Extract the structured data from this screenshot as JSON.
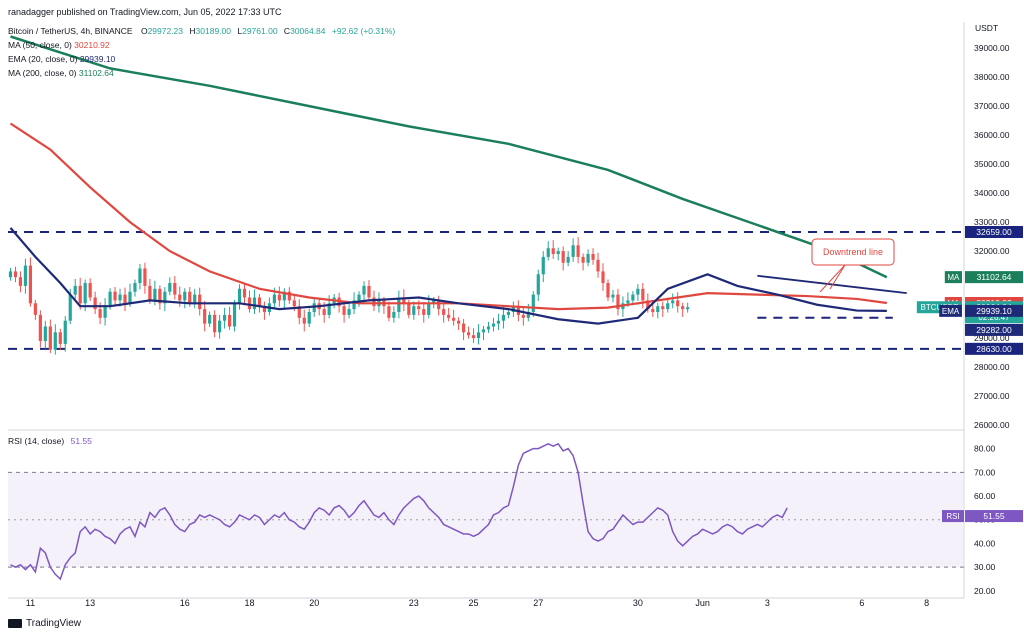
{
  "header": {
    "publish_line": "ranadagger published on TradingView.com, Jun 05, 2022 17:33 UTC",
    "symbol": "Bitcoin / TetherUS, 4h, BINANCE",
    "ohlc": [
      {
        "k": "O",
        "v": "29972.23"
      },
      {
        "k": "H",
        "v": "30189.00"
      },
      {
        "k": "L",
        "v": "29761.00"
      },
      {
        "k": "C",
        "v": "30064.84"
      },
      {
        "k": "chg",
        "v": "+92.62 (+0.31%)"
      }
    ],
    "indicators": [
      {
        "label": "MA (50, close, 0)",
        "value": "30210.92",
        "color": "#f23645"
      },
      {
        "label": "EMA (20, close, 0)",
        "value": "29939.10",
        "color": "#1e2a78"
      },
      {
        "label": "MA (200, close, 0)",
        "value": "31102.64",
        "color": "#1b7f5b"
      }
    ]
  },
  "rsi_header": {
    "label": "RSI (14, close)",
    "value": "51.55"
  },
  "footer": {
    "brand": "TradingView"
  },
  "colors": {
    "up": "#26a69a",
    "down": "#ef5350",
    "ma50": "#e0473f",
    "ema20": "#1e2a78",
    "ma200": "#1b7f5b",
    "rsi": "#7e57c2",
    "level": "#1a237e"
  },
  "chart_data": [
    {
      "type": "candlestick",
      "title": "Bitcoin / TetherUS, 4h, BINANCE",
      "ylabel": "USDT",
      "y_ticks": [
        "39000.00",
        "38000.00",
        "37000.00",
        "36000.00",
        "35000.00",
        "34000.00",
        "33000.00",
        "32000.00",
        "31000.00",
        "30000.00",
        "29000.00",
        "28000.00",
        "27000.00",
        "26000.00"
      ],
      "ylim": [
        25900,
        39900
      ],
      "x_ticks": [
        {
          "label": "11",
          "i": 4
        },
        {
          "label": "13",
          "i": 16
        },
        {
          "label": "16",
          "i": 35
        },
        {
          "label": "18",
          "i": 48
        },
        {
          "label": "20",
          "i": 61
        },
        {
          "label": "23",
          "i": 81
        },
        {
          "label": "25",
          "i": 93
        },
        {
          "label": "27",
          "i": 106
        },
        {
          "label": "30",
          "i": 126
        },
        {
          "label": "Jun",
          "i": 139
        },
        {
          "label": "3",
          "i": 152
        },
        {
          "label": "6",
          "i": 171
        },
        {
          "label": "8",
          "i": 184
        }
      ],
      "candles_close": [
        31300,
        31100,
        30800,
        31500,
        30200,
        29800,
        28900,
        29400,
        28600,
        29200,
        28800,
        29600,
        30500,
        30800,
        30200,
        30900,
        30400,
        30000,
        29700,
        30100,
        30600,
        30300,
        30500,
        30200,
        30600,
        30900,
        31400,
        30800,
        30300,
        30700,
        30200,
        30600,
        30900,
        30500,
        30300,
        30600,
        30200,
        30500,
        30000,
        29500,
        29800,
        29200,
        29600,
        29800,
        29400,
        30200,
        30700,
        30400,
        30000,
        30400,
        30100,
        29900,
        30200,
        30500,
        30300,
        30600,
        30300,
        30100,
        29700,
        29500,
        29900,
        30200,
        30000,
        29800,
        30200,
        30400,
        30100,
        29800,
        30000,
        30300,
        30500,
        30800,
        30400,
        30100,
        30300,
        30100,
        29700,
        29900,
        30400,
        30200,
        29800,
        30100,
        30000,
        29800,
        30200,
        30300,
        30000,
        29800,
        29700,
        29600,
        29500,
        29200,
        29100,
        29000,
        29200,
        29300,
        29400,
        29500,
        29600,
        29800,
        29900,
        30100,
        29800,
        29700,
        29900,
        30500,
        31200,
        31800,
        32100,
        31900,
        32000,
        31600,
        31800,
        32200,
        31800,
        31600,
        31900,
        31700,
        31300,
        30900,
        30400,
        30500,
        30000,
        30200,
        30300,
        30500,
        30700,
        30300,
        30000,
        29900,
        30100,
        30000,
        30200,
        30300,
        30100,
        30000,
        30064
      ],
      "candles_index_offset": 0,
      "series": [
        {
          "name": "MA (50, close, 0)",
          "last": 30210.92
        },
        {
          "name": "EMA (20, close, 0)",
          "last": 29939.1
        },
        {
          "name": "MA (200, close, 0)",
          "last": 31102.64
        }
      ],
      "ma200_points": [
        [
          0,
          39400
        ],
        [
          20,
          38300
        ],
        [
          40,
          37700
        ],
        [
          60,
          37000
        ],
        [
          80,
          36300
        ],
        [
          100,
          35700
        ],
        [
          120,
          34800
        ],
        [
          135,
          33800
        ],
        [
          150,
          32900
        ],
        [
          165,
          32000
        ],
        [
          176,
          31100
        ]
      ],
      "ma50_points": [
        [
          0,
          36400
        ],
        [
          8,
          35500
        ],
        [
          16,
          34200
        ],
        [
          24,
          33000
        ],
        [
          32,
          32000
        ],
        [
          40,
          31300
        ],
        [
          50,
          30700
        ],
        [
          60,
          30400
        ],
        [
          70,
          30200
        ],
        [
          80,
          30200
        ],
        [
          90,
          30200
        ],
        [
          100,
          30100
        ],
        [
          110,
          30000
        ],
        [
          120,
          30050
        ],
        [
          130,
          30300
        ],
        [
          140,
          30550
        ],
        [
          150,
          30500
        ],
        [
          160,
          30450
        ],
        [
          170,
          30350
        ],
        [
          176,
          30210
        ]
      ],
      "ema20_points": [
        [
          0,
          32800
        ],
        [
          5,
          31800
        ],
        [
          10,
          30900
        ],
        [
          14,
          30100
        ],
        [
          20,
          30100
        ],
        [
          28,
          30300
        ],
        [
          36,
          30200
        ],
        [
          46,
          30200
        ],
        [
          54,
          30000
        ],
        [
          62,
          30100
        ],
        [
          72,
          30300
        ],
        [
          82,
          30400
        ],
        [
          90,
          30200
        ],
        [
          100,
          30000
        ],
        [
          110,
          29650
        ],
        [
          118,
          29500
        ],
        [
          126,
          29700
        ],
        [
          132,
          30700
        ],
        [
          140,
          31200
        ],
        [
          146,
          30800
        ],
        [
          154,
          30500
        ],
        [
          162,
          30150
        ],
        [
          170,
          29950
        ],
        [
          176,
          29940
        ]
      ],
      "levels": [
        {
          "label": "32659.00",
          "value": 32659
        },
        {
          "label": "28630.00",
          "value": 28630
        }
      ],
      "support_line": {
        "value": 29700,
        "from": 150,
        "to": 176
      },
      "downtrend_line": {
        "from": [
          150,
          31150
        ],
        "to": [
          180,
          30550
        ]
      },
      "annotation": "Downtrend line",
      "price_tags": [
        {
          "tag": "MA",
          "value": "31102.64",
          "y": 31102.64,
          "color": "#1b7f5b"
        },
        {
          "tag": "MA",
          "value": "30210.92",
          "y": 30210.92,
          "color": "#e0473f"
        },
        {
          "tag": "BTCUSDT",
          "value": "30064.84",
          "sub": "02:26:47",
          "y": 30064.84,
          "color": "#26a69a"
        },
        {
          "tag": "EMA",
          "value": "29939.10",
          "y": 29939.1,
          "color": "#1e2a78"
        },
        {
          "tag": "",
          "value": "29282.00",
          "y": 29282,
          "color": "#1e2a78"
        },
        {
          "tag": "",
          "value": "28630.00",
          "y": 28630,
          "color": "#1a237e"
        },
        {
          "tag": "",
          "value": "32659.00",
          "y": 32659,
          "color": "#1a237e"
        }
      ]
    },
    {
      "type": "line",
      "name": "RSI (14, close)",
      "y_ticks": [
        "80.00",
        "70.00",
        "60.00",
        "50.00",
        "40.00",
        "30.00",
        "20.00"
      ],
      "ylim": [
        17,
        87
      ],
      "band": [
        30,
        70
      ],
      "last": 51.55,
      "values": [
        31,
        30,
        31,
        29,
        31,
        28,
        38,
        36,
        30,
        27,
        25,
        31,
        34,
        36,
        45,
        47,
        44,
        46,
        45,
        43,
        42,
        40,
        44,
        46,
        47,
        43,
        49,
        47,
        53,
        51,
        54,
        55,
        52,
        48,
        46,
        45,
        48,
        49,
        52,
        51,
        52,
        51,
        50,
        48,
        47,
        49,
        52,
        51,
        50,
        52,
        51,
        48,
        50,
        52,
        51,
        53,
        50,
        49,
        47,
        46,
        49,
        53,
        55,
        54,
        52,
        55,
        56,
        54,
        51,
        53,
        56,
        58,
        55,
        52,
        51,
        53,
        50,
        48,
        52,
        55,
        57,
        59,
        60,
        58,
        55,
        53,
        51,
        48,
        47,
        46,
        45,
        44,
        44,
        43,
        44,
        46,
        48,
        52,
        53,
        55,
        56,
        64,
        73,
        78,
        79,
        80,
        80,
        81,
        82,
        81,
        82,
        79,
        80,
        77,
        70,
        57,
        45,
        42,
        41,
        42,
        45,
        46,
        49,
        52,
        50,
        48,
        49,
        49,
        51,
        53,
        55,
        54,
        52,
        45,
        41,
        39,
        41,
        43,
        44,
        46,
        45,
        44,
        45,
        47,
        48,
        47,
        45,
        44,
        46,
        47,
        48,
        47,
        49,
        51,
        52,
        51,
        55
      ]
    }
  ]
}
